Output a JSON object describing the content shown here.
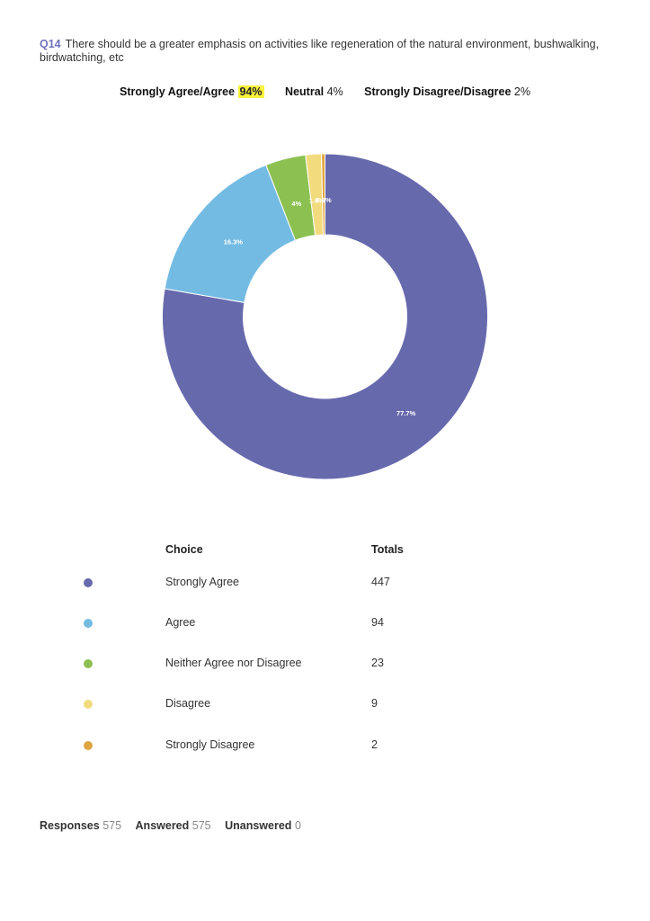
{
  "question": {
    "number": "Q14",
    "text": "There should be a greater emphasis on activities like regeneration of the natural environment, bushwalking, birdwatching, etc"
  },
  "summary": {
    "agree_label": "Strongly Agree/Agree",
    "agree_value": "94%",
    "neutral_label": "Neutral",
    "neutral_value": "4%",
    "disagree_label": "Strongly Disagree/Disagree",
    "disagree_value": "2%"
  },
  "chart_data": {
    "type": "pie",
    "donut": true,
    "categories": [
      "Strongly Agree",
      "Agree",
      "Neither Agree nor Disagree",
      "Disagree",
      "Strongly Disagree"
    ],
    "values": [
      447,
      94,
      23,
      9,
      2
    ],
    "slice_labels": [
      "77.7%",
      "16.3%",
      "4%",
      "1.6%",
      "0.3%"
    ],
    "colors": [
      "#6769ad",
      "#74bbe3",
      "#8cc152",
      "#f2db7d",
      "#e0a543"
    ]
  },
  "table": {
    "choice_header": "Choice",
    "totals_header": "Totals",
    "rows": [
      {
        "choice": "Strongly Agree",
        "total": "447"
      },
      {
        "choice": "Agree",
        "total": "94"
      },
      {
        "choice": "Neither Agree nor Disagree",
        "total": "23"
      },
      {
        "choice": "Disagree",
        "total": "9"
      },
      {
        "choice": "Strongly Disagree",
        "total": "2"
      }
    ]
  },
  "footer": {
    "responses_label": "Responses",
    "responses_value": "575",
    "answered_label": "Answered",
    "answered_value": "575",
    "unanswered_label": "Unanswered",
    "unanswered_value": "0"
  }
}
